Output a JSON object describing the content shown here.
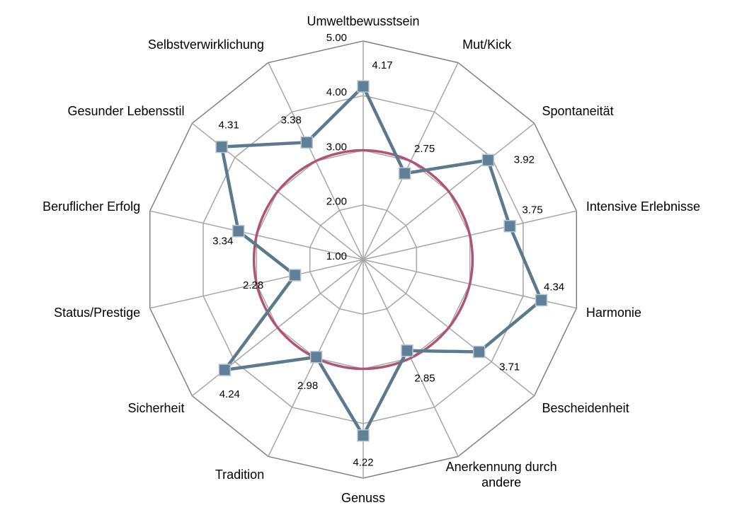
{
  "chart_data": {
    "type": "radar",
    "categories": [
      "Umweltbewusstsein",
      "Mut/Kick",
      "Spontaneität",
      "Intensive Erlebnisse",
      "Harmonie",
      "Bescheidenheit",
      "Anerkennung durch andere",
      "Genuss",
      "Tradition",
      "Sicherheit",
      "Status/Prestige",
      "Beruflicher Erfolg",
      "Gesunder Lebensstil",
      "Selbstverwirklichung"
    ],
    "series": [
      {
        "color": "#5b7a8e",
        "marker_color": "#5f8096",
        "markers": true,
        "data_labels": true,
        "values": [
          4.17,
          2.75,
          3.92,
          3.75,
          4.34,
          3.71,
          2.85,
          4.22,
          2.98,
          4.24,
          2.28,
          3.34,
          4.31,
          3.38
        ]
      },
      {
        "color": "#b05474",
        "markers": false,
        "data_labels": false,
        "smooth": true,
        "values": [
          3,
          3,
          3,
          3,
          3,
          3,
          3,
          3,
          3,
          3,
          3,
          3,
          3,
          3
        ]
      }
    ],
    "ylim": [
      1,
      5
    ],
    "yticks": [
      {
        "value": 1,
        "label": "1.00"
      },
      {
        "value": 2,
        "label": "2.00"
      },
      {
        "value": 3,
        "label": "3.00"
      },
      {
        "value": 4,
        "label": "4.00"
      },
      {
        "value": 5,
        "label": "5.00"
      }
    ],
    "grid": true
  }
}
